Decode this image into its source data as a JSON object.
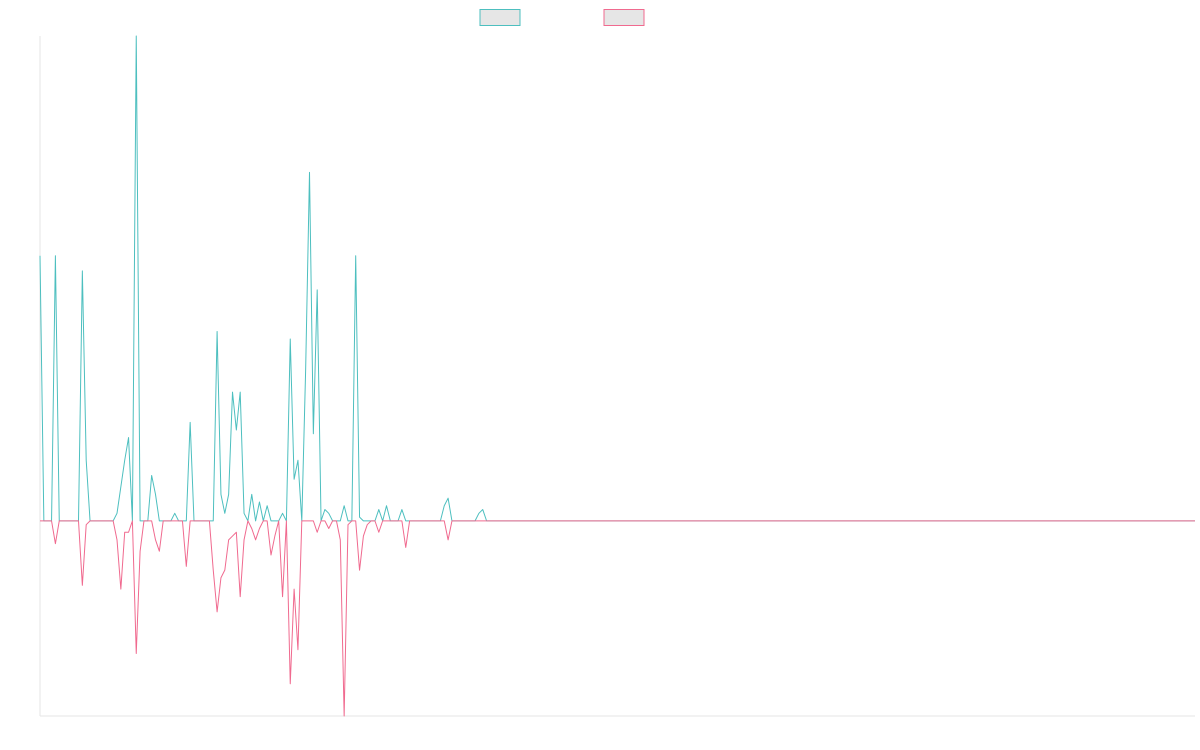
{
  "chart_data": {
    "type": "line",
    "title": "",
    "xlabel": "",
    "ylabel": "",
    "x_count": 301,
    "ylim": [
      -51.5,
      128
    ],
    "grid": false,
    "legend": {
      "position": "top-center"
    },
    "colors": {
      "axis": "#e6e6e6",
      "legend_fill": "#e6e6e6"
    },
    "series": [
      {
        "color": "#4dbfbf",
        "data": [
          [
            0,
            70
          ],
          [
            4,
            70
          ],
          [
            11,
            66
          ],
          [
            12,
            16
          ],
          [
            20,
            2
          ],
          [
            21,
            9
          ],
          [
            22,
            16
          ],
          [
            23,
            22
          ],
          [
            25,
            128
          ],
          [
            29,
            12
          ],
          [
            30,
            7
          ],
          [
            35,
            2
          ],
          [
            39,
            26
          ],
          [
            46,
            50
          ],
          [
            47,
            7
          ],
          [
            48,
            2
          ],
          [
            49,
            7
          ],
          [
            50,
            34
          ],
          [
            51,
            24
          ],
          [
            52,
            34
          ],
          [
            53,
            2
          ],
          [
            55,
            7
          ],
          [
            57,
            5
          ],
          [
            59,
            4
          ],
          [
            63,
            2
          ],
          [
            65,
            48
          ],
          [
            66,
            11
          ],
          [
            67,
            16
          ],
          [
            69,
            40
          ],
          [
            70,
            92
          ],
          [
            71,
            23
          ],
          [
            72,
            61
          ],
          [
            74,
            3
          ],
          [
            75,
            2
          ],
          [
            79,
            4
          ],
          [
            82,
            70
          ],
          [
            83,
            1
          ],
          [
            88,
            3
          ],
          [
            90,
            4
          ],
          [
            94,
            3
          ],
          [
            105,
            4
          ],
          [
            106,
            6
          ],
          [
            114,
            2
          ],
          [
            115,
            3
          ]
        ]
      },
      {
        "color": "#f06a8f",
        "data": [
          [
            4,
            -6
          ],
          [
            11,
            -17
          ],
          [
            12,
            -1
          ],
          [
            20,
            -5
          ],
          [
            21,
            -18
          ],
          [
            22,
            -3
          ],
          [
            23,
            -3
          ],
          [
            25,
            -35
          ],
          [
            26,
            -8
          ],
          [
            30,
            -5
          ],
          [
            31,
            -8
          ],
          [
            38,
            -12
          ],
          [
            45,
            -13
          ],
          [
            46,
            -24
          ],
          [
            47,
            -15
          ],
          [
            48,
            -13
          ],
          [
            49,
            -5
          ],
          [
            50,
            -4
          ],
          [
            51,
            -3
          ],
          [
            52,
            -20
          ],
          [
            53,
            -5
          ],
          [
            55,
            -2
          ],
          [
            56,
            -5
          ],
          [
            57,
            -2
          ],
          [
            60,
            -9
          ],
          [
            61,
            -4
          ],
          [
            63,
            -20
          ],
          [
            65,
            -43
          ],
          [
            66,
            -18
          ],
          [
            67,
            -34
          ],
          [
            72,
            -3
          ],
          [
            75,
            -2
          ],
          [
            78,
            -5
          ],
          [
            79,
            -51.5
          ],
          [
            80,
            -1
          ],
          [
            83,
            -13
          ],
          [
            84,
            -4
          ],
          [
            85,
            -1
          ],
          [
            88,
            -3
          ],
          [
            95,
            -7
          ],
          [
            106,
            -5
          ]
        ]
      }
    ]
  }
}
